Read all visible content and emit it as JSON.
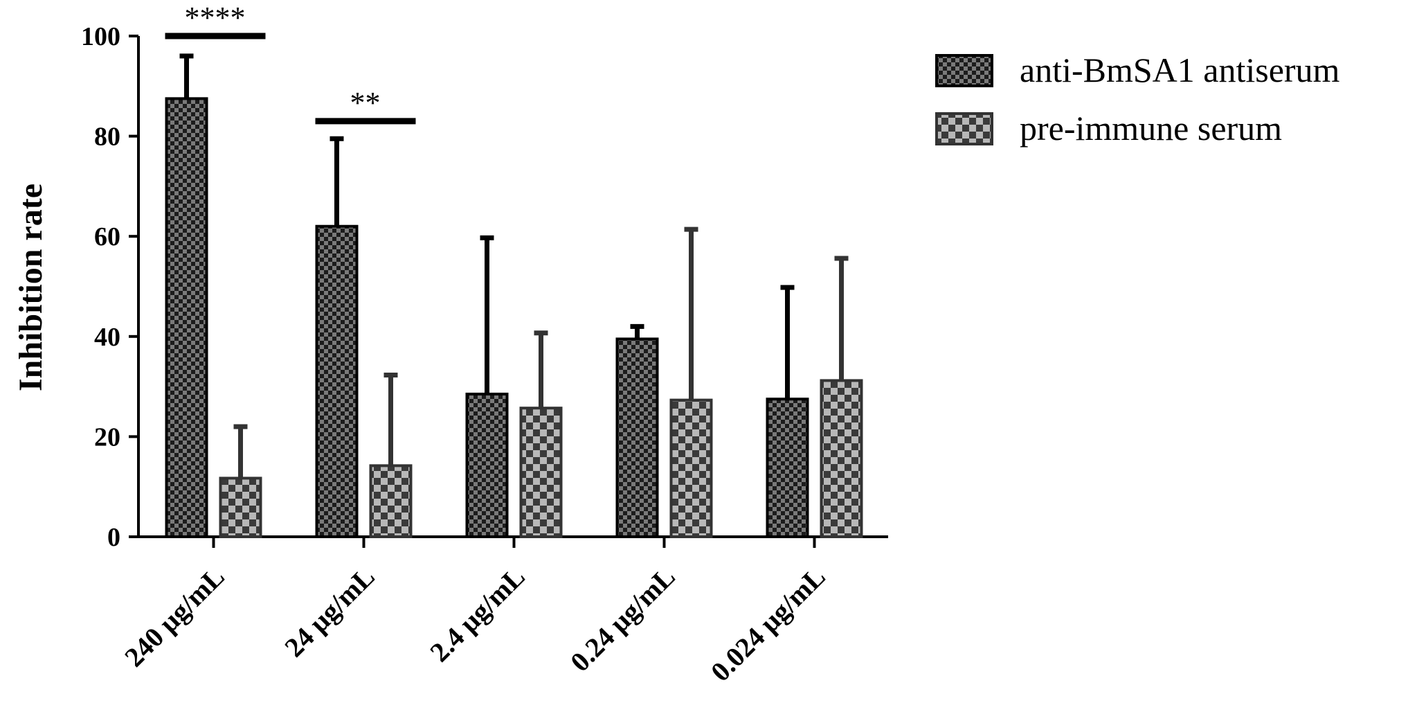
{
  "chart_data": {
    "type": "bar",
    "title": "",
    "xlabel": "",
    "ylabel": "Inhibition rate",
    "ylim": [
      0,
      100
    ],
    "yticks": [
      "0",
      "20",
      "40",
      "60",
      "80",
      "100"
    ],
    "categories": [
      "240 μg/mL",
      "24 μg/mL",
      "2.4 μg/mL",
      "0.24 μg/mL",
      "0.024 μg/mL"
    ],
    "series": [
      {
        "name": "anti-BmSA1 antiserum",
        "values": [
          87.5,
          62,
          28.5,
          39.5,
          27.5
        ],
        "error_upper": [
          96,
          79.5,
          59.7,
          42,
          49.8
        ],
        "color": "#2b2b2b"
      },
      {
        "name": "pre-immune serum",
        "values": [
          11.7,
          14.2,
          25.7,
          27.3,
          31.2
        ],
        "error_upper": [
          22,
          32.3,
          40.7,
          61.4,
          55.6
        ],
        "color": "#666666"
      }
    ],
    "annotations": [
      {
        "text": "****",
        "category": 0,
        "y": 100
      },
      {
        "text": "**",
        "category": 1,
        "y": 83
      }
    ],
    "legend": "right",
    "grid": false
  }
}
